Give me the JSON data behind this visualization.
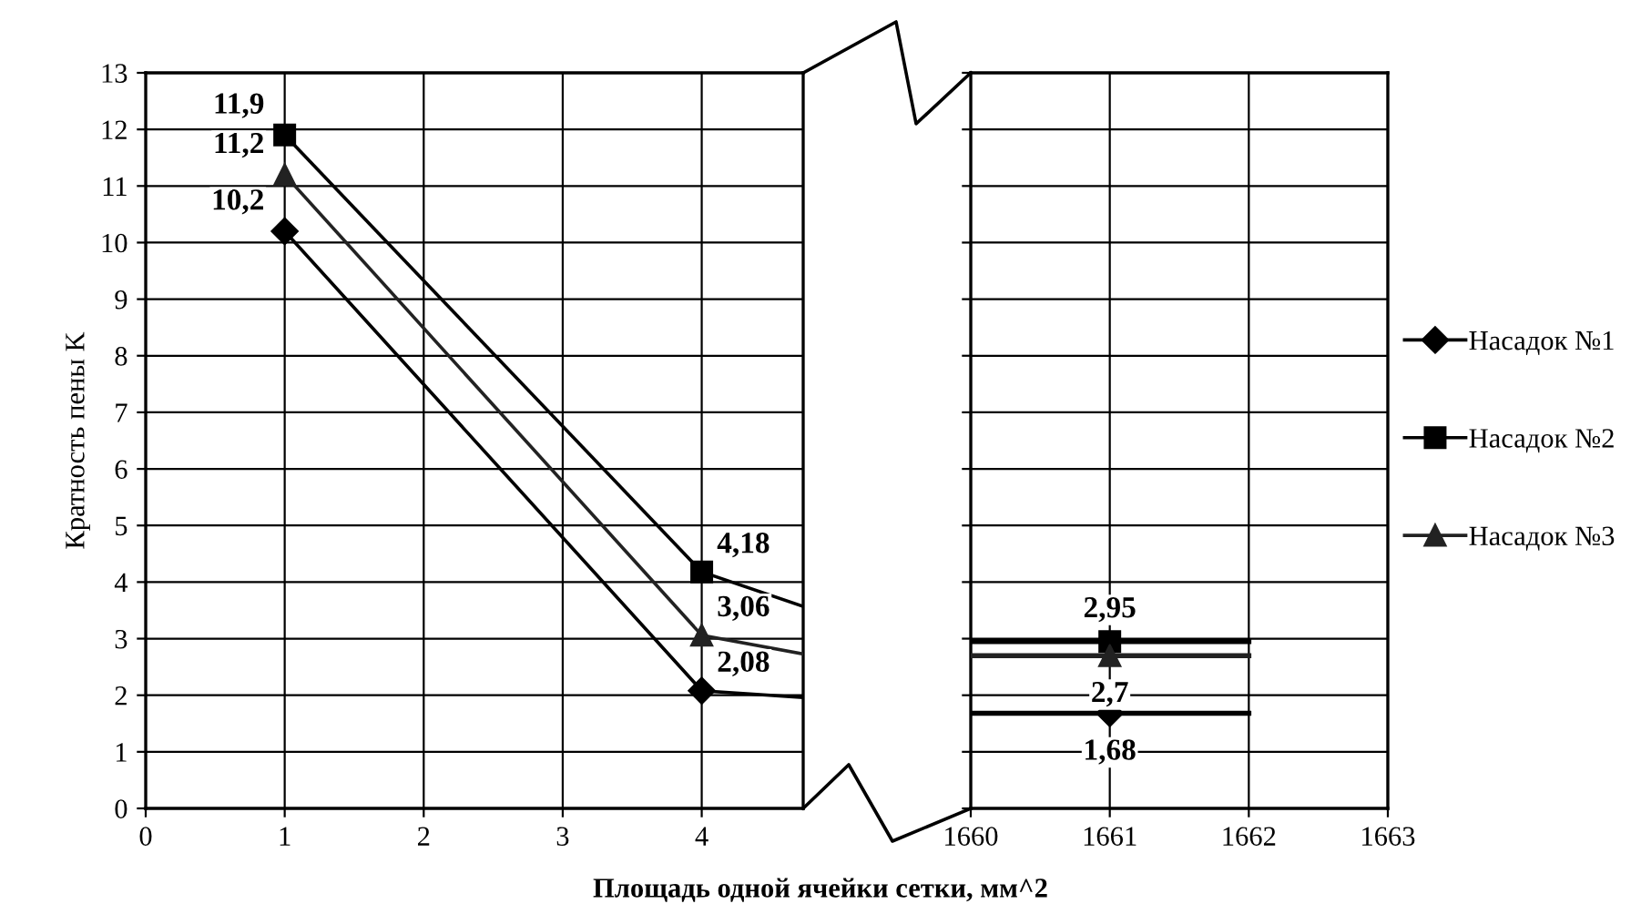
{
  "chart_data": [
    {
      "type": "line",
      "xlabel": "Площадь одной ячейки сетки, мм^2",
      "ylabel": "Кратность пены K",
      "xlim": [
        0,
        4.73
      ],
      "ylim": [
        0,
        13
      ],
      "xticks": [
        0,
        1,
        2,
        3,
        4
      ],
      "yticks": [
        0,
        1,
        2,
        3,
        4,
        5,
        6,
        7,
        8,
        9,
        10,
        11,
        12,
        13
      ],
      "grid": true,
      "series": [
        {
          "color": "#000000",
          "marker": "diamond",
          "x": [
            1,
            4
          ],
          "values": [
            10.2,
            2.08
          ],
          "value_labels": [
            "10,2",
            "2,08"
          ]
        },
        {
          "color": "#000000",
          "marker": "square",
          "x": [
            1,
            4
          ],
          "values": [
            11.9,
            4.18
          ],
          "value_labels": [
            "11,9",
            "4,18"
          ]
        },
        {
          "color": "#222222",
          "marker": "triangle",
          "x": [
            1,
            4
          ],
          "values": [
            11.2,
            3.06
          ],
          "value_labels": [
            "11,2",
            "3,06"
          ]
        },
        {
          "color": "#000000",
          "marker": "none",
          "x": [
            4,
            4.73
          ],
          "values": [
            2.08,
            1.96
          ]
        },
        {
          "color": "#000000",
          "marker": "none",
          "x": [
            4,
            4.73
          ],
          "values": [
            4.18,
            3.57
          ]
        },
        {
          "color": "#222222",
          "marker": "none",
          "x": [
            4,
            4.73
          ],
          "values": [
            3.06,
            2.73
          ]
        }
      ]
    },
    {
      "type": "line",
      "xlim": [
        1660,
        1663
      ],
      "ylim": [
        0,
        13
      ],
      "xticks": [
        1660,
        1661,
        1662,
        1663
      ],
      "yticks": [
        0,
        1,
        2,
        3,
        4,
        5,
        6,
        7,
        8,
        9,
        10,
        11,
        12,
        13
      ],
      "grid": true,
      "tick_labels": "x",
      "legend": "right",
      "series": [
        {
          "name": "Насадок №1",
          "color": "#000000",
          "marker": "diamond",
          "x": [
            1661
          ],
          "values": [
            1.68
          ],
          "value_labels": [
            "1,68"
          ]
        },
        {
          "name": "Насадок №2",
          "color": "#000000",
          "marker": "square",
          "x": [
            1661
          ],
          "values": [
            2.95
          ],
          "value_labels": [
            "2,95"
          ]
        },
        {
          "name": "Насадок №3",
          "color": "#222222",
          "marker": "triangle",
          "x": [
            1661
          ],
          "values": [
            2.7
          ],
          "value_labels": [
            "2,7"
          ]
        },
        {
          "color": "#000000",
          "marker": "none",
          "x": [
            1660,
            1662
          ],
          "values": [
            1.68,
            1.68
          ]
        },
        {
          "color": "#000000",
          "marker": "none",
          "x": [
            1660,
            1662
          ],
          "values": [
            2.95,
            2.95
          ]
        },
        {
          "color": "#222222",
          "marker": "none",
          "x": [
            1660,
            1662
          ],
          "values": [
            2.7,
            2.7
          ]
        }
      ]
    }
  ]
}
